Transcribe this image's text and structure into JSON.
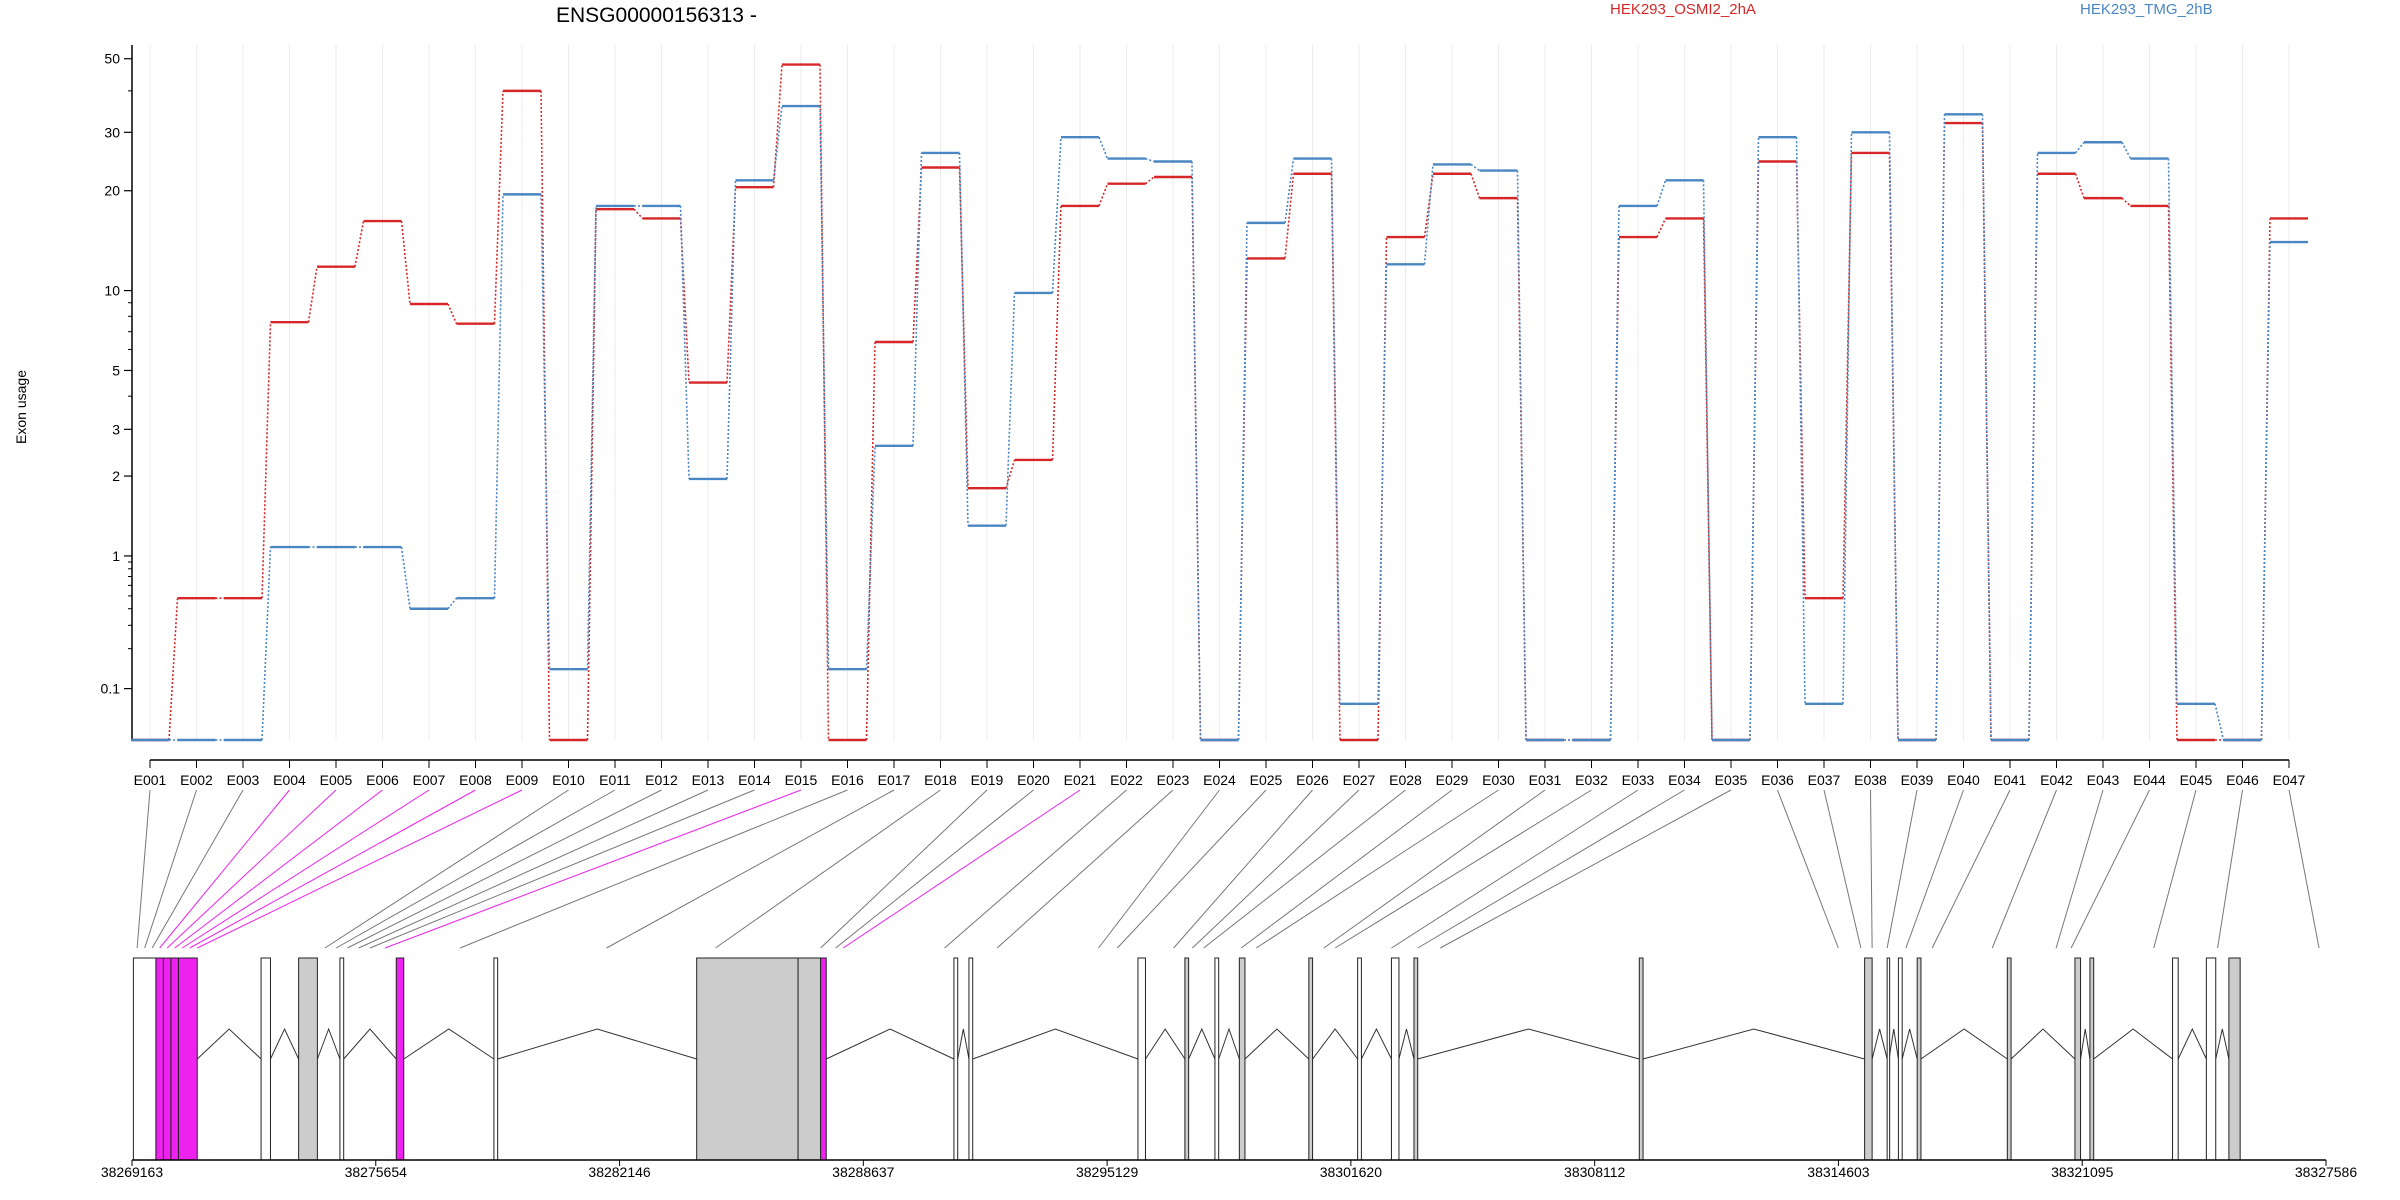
{
  "chart_data": {
    "type": "line",
    "title": "ENSG00000156313 -",
    "ylabel": "Exon usage",
    "y_scale": "log",
    "y_ticks": [
      "0.1",
      "1",
      "2",
      "3",
      "5",
      "10",
      "20",
      "30",
      "50"
    ],
    "grid": "vertical",
    "legend_placement": "top",
    "categories": [
      "E001",
      "E002",
      "E003",
      "E004",
      "E005",
      "E006",
      "E007",
      "E008",
      "E009",
      "E010",
      "E011",
      "E012",
      "E013",
      "E014",
      "E015",
      "E016",
      "E017",
      "E018",
      "E019",
      "E020",
      "E021",
      "E022",
      "E023",
      "E024",
      "E025",
      "E026",
      "E027",
      "E028",
      "E029",
      "E030",
      "E031",
      "E032",
      "E033",
      "E034",
      "E035",
      "E036",
      "E037",
      "E038",
      "E039",
      "E040",
      "E041",
      "E042",
      "E043",
      "E044",
      "E045",
      "E046",
      "E047"
    ],
    "series": [
      {
        "name": "HEK293_OSMI2_2hA",
        "color": "#d62728",
        "values": [
          0.07,
          0.48,
          0.48,
          7.6,
          11.8,
          16.2,
          8.9,
          7.5,
          40,
          0.07,
          17.6,
          16.5,
          4.5,
          20.5,
          48,
          0.07,
          6.4,
          23.5,
          1.8,
          2.3,
          18,
          21,
          22,
          0.07,
          12.5,
          22.5,
          0.07,
          14.5,
          22.5,
          19,
          0.07,
          0.07,
          14.5,
          16.5,
          0.07,
          24.5,
          0.48,
          26,
          0.07,
          32,
          0.07,
          22.5,
          19,
          18,
          0.07,
          0.07,
          16.5
        ]
      },
      {
        "name": "HEK293_TMG_2hB",
        "color": "#4a86c1",
        "values": [
          0.07,
          0.07,
          0.07,
          1.08,
          1.08,
          1.08,
          0.4,
          0.48,
          19.5,
          0.14,
          18,
          18,
          1.95,
          21.5,
          36,
          0.14,
          2.6,
          26,
          1.3,
          9.8,
          29,
          25,
          24.5,
          0.07,
          16,
          25,
          0.09,
          12,
          24,
          23,
          0.07,
          0.07,
          18,
          21.5,
          0.07,
          29,
          0.09,
          30,
          0.07,
          34,
          0.07,
          26,
          28,
          25,
          0.09,
          0.07,
          14
        ]
      }
    ],
    "gene_model": {
      "genomic_ticks": [
        "38269163",
        "38275654",
        "38282146",
        "38288637",
        "38295129",
        "38301620",
        "38308112",
        "38314603",
        "38321095",
        "38327586"
      ],
      "genomic_range": [
        38269163,
        38327586
      ],
      "exon_color_default": "#ffffff",
      "exon_color_expressed": "#cccccc",
      "exon_color_highlight": "#ee22ee",
      "highlighted_exons": [
        "E004",
        "E005",
        "E006",
        "E007",
        "E008",
        "E009",
        "E015",
        "E021"
      ]
    }
  }
}
